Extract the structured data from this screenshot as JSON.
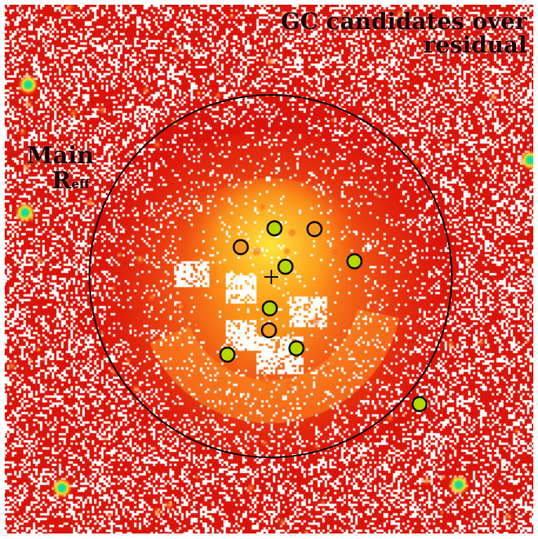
{
  "title_lines": [
    "GC candidates over",
    "residual"
  ],
  "label": {
    "main": "Main",
    "r": "R",
    "sub": "eff"
  },
  "colors": {
    "background": "#d9140a",
    "halo": "#f04a10",
    "core": "#ffc21a",
    "speckle": "#ffffff",
    "circle_stroke": "#000000",
    "marker_fill": "#b8d600",
    "star_core": "#00d0ff"
  },
  "icons": [
    "center-cross-icon"
  ]
}
